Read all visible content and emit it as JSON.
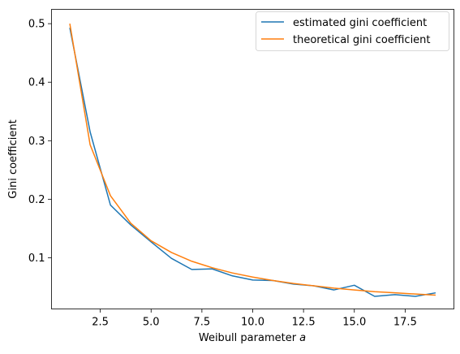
{
  "chart_data": {
    "type": "line",
    "xlabel_prefix": "Weibull parameter ",
    "xlabel_var": "a",
    "ylabel": "Gini coefficient",
    "xlim": [
      0.1,
      19.9
    ],
    "ylim": [
      0.0125,
      0.5245
    ],
    "x_ticks": [
      2.5,
      5.0,
      7.5,
      10.0,
      12.5,
      15.0,
      17.5
    ],
    "x_tick_labels": [
      "2.5",
      "5.0",
      "7.5",
      "10.0",
      "12.5",
      "15.0",
      "17.5"
    ],
    "y_ticks": [
      0.1,
      0.2,
      0.3,
      0.4,
      0.5
    ],
    "y_tick_labels": [
      "0.1",
      "0.2",
      "0.3",
      "0.4",
      "0.5"
    ],
    "grid": false,
    "legend_position": "top-right",
    "series": [
      {
        "name": "estimated gini coefficient",
        "color": "#1f77b4",
        "x": [
          1,
          2,
          3,
          4,
          5,
          6,
          7,
          8,
          9,
          10,
          11,
          12,
          13,
          14,
          15,
          16,
          17,
          18,
          19
        ],
        "values": [
          0.493,
          0.315,
          0.19,
          0.156,
          0.127,
          0.099,
          0.08,
          0.081,
          0.069,
          0.062,
          0.061,
          0.055,
          0.052,
          0.045,
          0.053,
          0.034,
          0.037,
          0.034,
          0.04
        ]
      },
      {
        "name": "theoretical gini coefficient",
        "color": "#ff7f0e",
        "x": [
          1,
          2,
          3,
          4,
          5,
          6,
          7,
          8,
          9,
          10,
          11,
          12,
          13,
          14,
          15,
          16,
          17,
          18,
          19
        ],
        "values": [
          0.5,
          0.293,
          0.206,
          0.159,
          0.129,
          0.109,
          0.094,
          0.083,
          0.074,
          0.067,
          0.061,
          0.056,
          0.052,
          0.048,
          0.045,
          0.042,
          0.04,
          0.038,
          0.036
        ]
      }
    ]
  }
}
